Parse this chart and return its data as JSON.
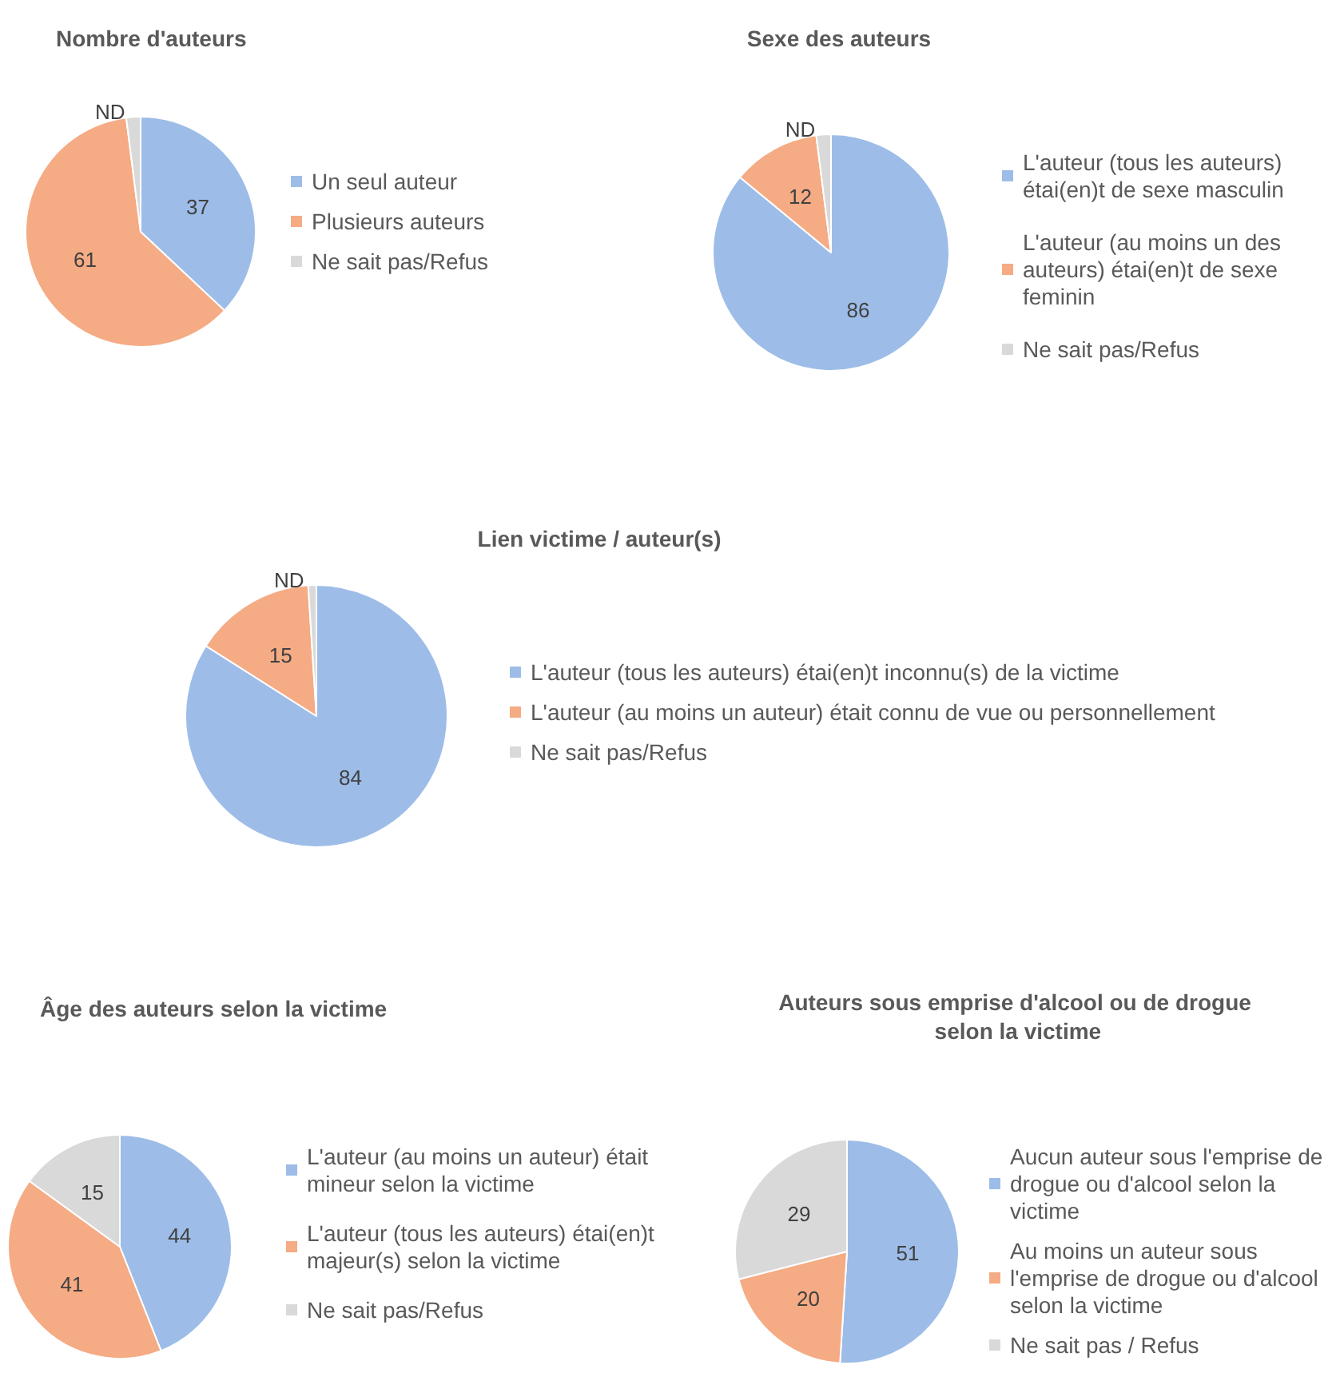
{
  "chart_data": [
    {
      "type": "pie",
      "title": "Nombre d'auteurs",
      "categories": [
        "Un seul auteur",
        "Plusieurs auteurs",
        "Ne sait pas/Refus"
      ],
      "values": [
        37,
        61,
        2
      ],
      "value_labels": [
        "37",
        "61",
        "ND"
      ],
      "colors": [
        "#9dbde8",
        "#f5ab84",
        "#d9d9d9"
      ],
      "legend": "right"
    },
    {
      "type": "pie",
      "title": "Sexe des auteurs",
      "categories": [
        "L'auteur (tous les auteurs) étai(en)t de sexe masculin",
        "L'auteur (au moins un des auteurs) étai(en)t de sexe feminin",
        "Ne sait pas/Refus"
      ],
      "values": [
        86,
        12,
        2
      ],
      "value_labels": [
        "86",
        "12",
        "ND"
      ],
      "colors": [
        "#9dbde8",
        "#f5ab84",
        "#d9d9d9"
      ],
      "legend": "right"
    },
    {
      "type": "pie",
      "title": "Lien victime / auteur(s)",
      "categories": [
        "L'auteur (tous les auteurs) étai(en)t inconnu(s) de la victime",
        "L'auteur (au moins un auteur) était connu de vue ou personnellement",
        "Ne sait pas/Refus"
      ],
      "values": [
        84,
        15,
        1
      ],
      "value_labels": [
        "84",
        "15",
        "ND"
      ],
      "colors": [
        "#9dbde8",
        "#f5ab84",
        "#d9d9d9"
      ],
      "legend": "right"
    },
    {
      "type": "pie",
      "title": "Âge des auteurs selon la victime",
      "categories": [
        "L'auteur (au moins un auteur) était mineur selon la victime",
        "L'auteur (tous les auteurs) étai(en)t majeur(s) selon la victime",
        "Ne sait pas/Refus"
      ],
      "values": [
        44,
        41,
        15
      ],
      "value_labels": [
        "44",
        "41",
        "15"
      ],
      "colors": [
        "#9dbde8",
        "#f5ab84",
        "#d9d9d9"
      ],
      "legend": "right"
    },
    {
      "type": "pie",
      "title": "Auteurs sous emprise d'alcool ou de drogue selon la victime",
      "categories": [
        "Aucun auteur sous l'emprise de drogue ou d'alcool selon la victime",
        "Au moins un auteur sous l'emprise de drogue ou d'alcool selon la victime",
        "Ne sait pas / Refus"
      ],
      "values": [
        51,
        20,
        29
      ],
      "value_labels": [
        "51",
        "20",
        "29"
      ],
      "colors": [
        "#9dbde8",
        "#f5ab84",
        "#d9d9d9"
      ],
      "legend": "right"
    }
  ]
}
